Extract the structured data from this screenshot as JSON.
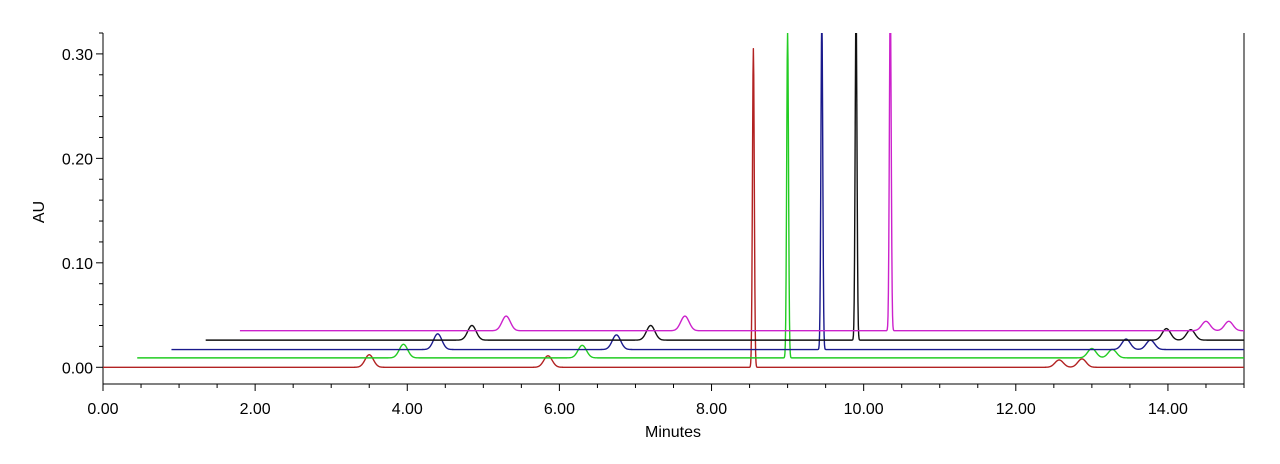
{
  "chart_data": {
    "type": "line",
    "title": "",
    "xlabel": "Minutes",
    "ylabel": "AU",
    "xlim": [
      0,
      15
    ],
    "ylim": [
      -0.016,
      0.32
    ],
    "x_ticks": [
      0,
      2,
      4,
      6,
      8,
      10,
      12,
      14
    ],
    "x_tick_labels": [
      "0.00",
      "2.00",
      "4.00",
      "6.00",
      "8.00",
      "10.00",
      "12.00",
      "14.00"
    ],
    "y_ticks": [
      0,
      0.1,
      0.2,
      0.3
    ],
    "y_tick_labels": [
      "0.00",
      "0.10",
      "0.20",
      "0.30"
    ],
    "grid": false,
    "legend": "none",
    "series": [
      {
        "color": "#b22222",
        "start": 0.0,
        "end": 15.0,
        "baseline": 0.0,
        "peaks": [
          [
            3.5,
            0.012
          ],
          [
            5.85,
            0.011
          ],
          [
            8.55,
            0.305
          ],
          [
            12.57,
            0.007
          ],
          [
            12.87,
            0.008
          ]
        ]
      },
      {
        "color": "#22cc22",
        "start": 0.45,
        "end": 15.0,
        "baseline": 0.009,
        "peaks": [
          [
            3.95,
            0.013
          ],
          [
            6.3,
            0.012
          ],
          [
            9.0,
            0.312
          ],
          [
            13.0,
            0.009
          ],
          [
            13.27,
            0.008
          ]
        ]
      },
      {
        "color": "#1a1a8c",
        "start": 0.9,
        "end": 15.0,
        "baseline": 0.017,
        "peaks": [
          [
            4.4,
            0.015
          ],
          [
            6.75,
            0.014
          ],
          [
            9.45,
            0.32
          ],
          [
            13.45,
            0.01
          ],
          [
            13.77,
            0.009
          ]
        ]
      },
      {
        "color": "#111111",
        "start": 1.35,
        "end": 15.0,
        "baseline": 0.026,
        "peaks": [
          [
            4.85,
            0.014
          ],
          [
            7.2,
            0.014
          ],
          [
            9.9,
            0.32
          ],
          [
            13.98,
            0.011
          ],
          [
            14.3,
            0.01
          ]
        ]
      },
      {
        "color": "#cc22cc",
        "start": 1.8,
        "end": 15.0,
        "baseline": 0.035,
        "peaks": [
          [
            5.3,
            0.014
          ],
          [
            7.65,
            0.014
          ],
          [
            10.35,
            0.32
          ],
          [
            14.5,
            0.009
          ],
          [
            14.8,
            0.009
          ]
        ]
      }
    ]
  }
}
